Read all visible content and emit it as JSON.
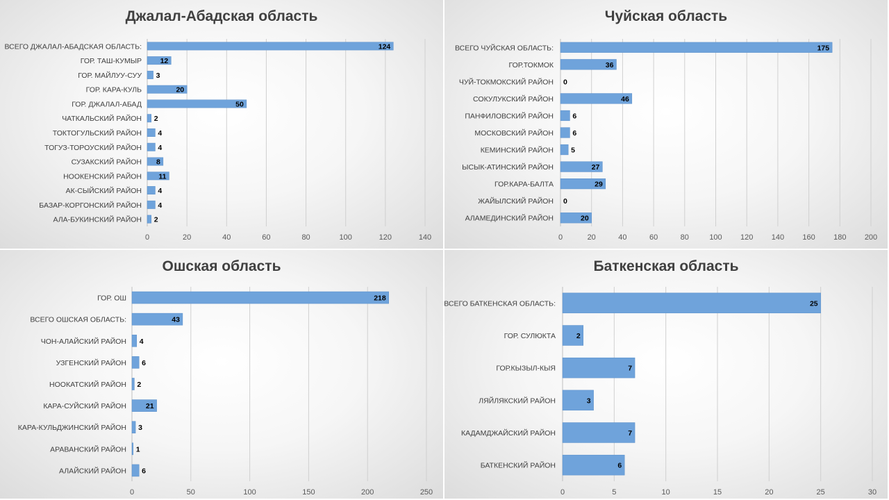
{
  "chart_data": [
    {
      "type": "bar",
      "orientation": "horizontal",
      "title": "Джалал-Абадская область",
      "categories": [
        "ВСЕГО ДЖАЛАЛ-АБАДСКАЯ ОБЛАСТЬ:",
        "ГОР. ТАШ-КУМЫР",
        "ГОР. МАЙЛУУ-СУУ",
        "ГОР. КАРА-КУЛЬ",
        "ГОР. ДЖАЛАЛ-АБАД",
        "ЧАТКАЛЬСКИЙ РАЙОН",
        "ТОКТОГУЛЬСКИЙ РАЙОН",
        "ТОГУЗ-ТОРОУСКИЙ РАЙОН",
        "СУЗАКСКИЙ РАЙОН",
        "НООКЕНСКИЙ РАЙОН",
        "АК-СЫЙСКИЙ РАЙОН",
        "БАЗАР-КОРГОНСКИЙ РАЙОН",
        "АЛА-БУКИНСКИЙ РАЙОН"
      ],
      "values": [
        124,
        12,
        3,
        20,
        50,
        2,
        4,
        4,
        8,
        11,
        4,
        4,
        2
      ],
      "xlim": [
        0,
        140
      ],
      "xticks": [
        0,
        20,
        40,
        60,
        80,
        100,
        120,
        140
      ],
      "data_label_position": "inside-end"
    },
    {
      "type": "bar",
      "orientation": "horizontal",
      "title": "Чуйская область",
      "categories": [
        "ВСЕГО ЧУЙСКАЯ ОБЛАСТЬ:",
        "ГОР.ТОКМОК",
        "ЧУЙ-ТОКМОКСКИЙ РАЙОН",
        "СОКУЛУКСКИЙ РАЙОН",
        "ПАНФИЛОВСКИЙ РАЙОН",
        "МОСКОВСКИЙ РАЙОН",
        "КЕМИНСКИЙ РАЙОН",
        "ЫСЫК-АТИНСКИЙ РАЙОН",
        "ГОР.КАРА-БАЛТА",
        "ЖАЙЫЛСКИЙ РАЙОН",
        "АЛАМЕДИНСКИЙ РАЙОН"
      ],
      "values": [
        175,
        36,
        0,
        46,
        6,
        6,
        5,
        27,
        29,
        0,
        20
      ],
      "xlim": [
        0,
        200
      ],
      "xticks": [
        0,
        20,
        40,
        60,
        80,
        100,
        120,
        140,
        160,
        180,
        200
      ],
      "data_label_position": "inside-end"
    },
    {
      "type": "bar",
      "orientation": "horizontal",
      "title": "Ошская область",
      "categories": [
        "ГОР. ОШ",
        "ВСЕГО ОШСКАЯ ОБЛАСТЬ:",
        "ЧОН-АЛАЙСКИЙ РАЙОН",
        "УЗГЕНСКИЙ РАЙОН",
        "НООКАТСКИЙ РАЙОН",
        "КАРА-СУЙСКИЙ РАЙОН",
        "КАРА-КУЛЬДЖИНСКИЙ РАЙОН",
        "АРАВАНСКИЙ РАЙОН",
        "АЛАЙСКИЙ РАЙОН"
      ],
      "values": [
        218,
        43,
        4,
        6,
        2,
        21,
        3,
        1,
        6
      ],
      "xlim": [
        0,
        250
      ],
      "xticks": [
        0,
        50,
        100,
        150,
        200,
        250
      ],
      "data_label_position": "inside-end"
    },
    {
      "type": "bar",
      "orientation": "horizontal",
      "title": "Баткенская область",
      "categories": [
        "ВСЕГО БАТКЕНСКАЯ ОБЛАСТЬ:",
        "ГОР. СУЛЮКТА",
        "ГОР.КЫЗЫЛ-КЫЯ",
        "ЛЯЙЛЯКСКИЙ РАЙОН",
        "КАДАМДЖАЙСКИЙ РАЙОН",
        "БАТКЕНСКИЙ РАЙОН"
      ],
      "values": [
        25,
        2,
        7,
        3,
        7,
        6
      ],
      "xlim": [
        0,
        30
      ],
      "xticks": [
        0,
        5,
        10,
        15,
        20,
        25,
        30
      ],
      "data_label_position": "inside-end"
    }
  ],
  "colors": {
    "bar_fill": "#6fa3db",
    "bar_stroke": "#5b8fc9",
    "title_text": "#404040",
    "gridline": "#d0d0d0"
  }
}
